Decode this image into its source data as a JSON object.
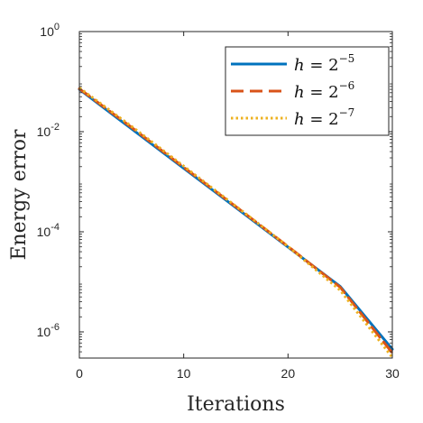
{
  "chart_data": {
    "type": "line",
    "xlabel": "Iterations",
    "ylabel": "Energy error",
    "xlim": [
      0,
      30
    ],
    "ylim": [
      3e-07,
      1
    ],
    "yscale": "log",
    "grid": false,
    "legend_position": "top-right",
    "x_ticks": [
      {
        "value": 0,
        "label": "0"
      },
      {
        "value": 10,
        "label": "10"
      },
      {
        "value": 20,
        "label": "20"
      },
      {
        "value": 30,
        "label": "30"
      }
    ],
    "y_ticks": [
      {
        "value": 1,
        "base": "10",
        "exp": "0"
      },
      {
        "value": 0.01,
        "base": "10",
        "exp": "-2"
      },
      {
        "value": 0.0001,
        "base": "10",
        "exp": "-4"
      },
      {
        "value": 1e-06,
        "base": "10",
        "exp": "-6"
      }
    ],
    "series": [
      {
        "name": "h = 2^-5",
        "legend_var": "h",
        "legend_base": "2",
        "legend_exp": "−5",
        "color": "#0072BD",
        "style": "solid",
        "x": [
          0,
          5,
          10,
          15,
          20,
          25,
          30
        ],
        "y": [
          0.07,
          0.0114,
          0.00186,
          0.000304,
          4.95e-05,
          8.1e-06,
          4.5e-07
        ]
      },
      {
        "name": "h = 2^-6",
        "legend_var": "h",
        "legend_base": "2",
        "legend_exp": "−6",
        "color": "#D95319",
        "style": "dashed",
        "x": [
          0,
          5,
          10,
          15,
          20,
          25,
          30
        ],
        "y": [
          0.072,
          0.0122,
          0.00195,
          0.000318,
          5.1e-05,
          7.8e-06,
          3.8e-07
        ]
      },
      {
        "name": "h = 2^-7",
        "legend_var": "h",
        "legend_base": "2",
        "legend_exp": "−7",
        "color": "#EDB120",
        "style": "dotted",
        "x": [
          0,
          5,
          10,
          15,
          20,
          25,
          30
        ],
        "y": [
          0.075,
          0.0128,
          0.00205,
          0.000325,
          5.1e-05,
          6.8e-06,
          3.1e-07
        ]
      }
    ]
  }
}
